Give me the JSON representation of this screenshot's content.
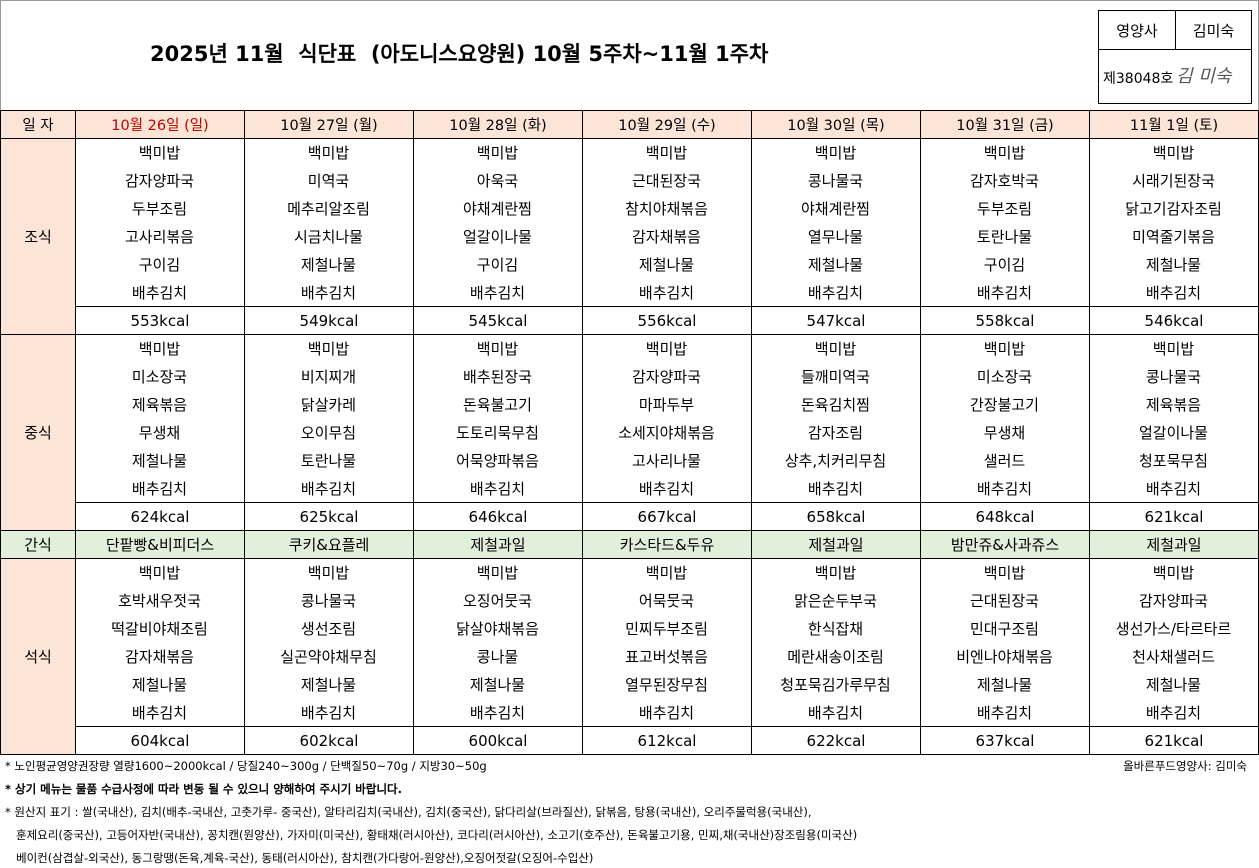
{
  "header": {
    "title": "2025년 11월  식단표  (아도니스요양원) 10월 5주차~11월 1주차"
  },
  "approval": {
    "role": "영양사",
    "name": "김미숙",
    "license": "제38048호",
    "signature": "김 미숙"
  },
  "table": {
    "header": [
      "일 자",
      "10월 26일 (일)",
      "10월 27일 (월)",
      "10월 28일 (화)",
      "10월 29일 (수)",
      "10월 30일 (목)",
      "10월 31일 (금)",
      "11월 1일 (토)"
    ],
    "sections": [
      {
        "label": "조식",
        "menus": [
          [
            "백미밥",
            "감자양파국",
            "두부조림",
            "고사리볶음",
            "구이김",
            "배추김치"
          ],
          [
            "백미밥",
            "미역국",
            "메추리알조림",
            "시금치나물",
            "제철나물",
            "배추김치"
          ],
          [
            "백미밥",
            "아욱국",
            "야채계란찜",
            "얼갈이나물",
            "구이김",
            "배추김치"
          ],
          [
            "백미밥",
            "근대된장국",
            "참치야채볶음",
            "감자채볶음",
            "제철나물",
            "배추김치"
          ],
          [
            "백미밥",
            "콩나물국",
            "야채계란찜",
            "열무나물",
            "제철나물",
            "배추김치"
          ],
          [
            "백미밥",
            "감자호박국",
            "두부조림",
            "토란나물",
            "구이김",
            "배추김치"
          ],
          [
            "백미밥",
            "시래기된장국",
            "닭고기감자조림",
            "미역줄기볶음",
            "제철나물",
            "배추김치"
          ]
        ],
        "kcal": [
          "553kcal",
          "549kcal",
          "545kcal",
          "556kcal",
          "547kcal",
          "558kcal",
          "546kcal"
        ]
      },
      {
        "label": "중식",
        "menus": [
          [
            "백미밥",
            "미소장국",
            "제육볶음",
            "무생채",
            "제철나물",
            "배추김치"
          ],
          [
            "백미밥",
            "비지찌개",
            "닭살카레",
            "오이무침",
            "토란나물",
            "배추김치"
          ],
          [
            "백미밥",
            "배추된장국",
            "돈육불고기",
            "도토리묵무침",
            "어묵양파볶음",
            "배추김치"
          ],
          [
            "백미밥",
            "감자양파국",
            "마파두부",
            "소세지야채볶음",
            "고사리나물",
            "배추김치"
          ],
          [
            "백미밥",
            "들깨미역국",
            "돈육김치찜",
            "감자조림",
            "상추,치커리무침",
            "배추김치"
          ],
          [
            "백미밥",
            "미소장국",
            "간장불고기",
            "무생채",
            "샐러드",
            "배추김치"
          ],
          [
            "백미밥",
            "콩나물국",
            "제육볶음",
            "얼갈이나물",
            "청포묵무침",
            "배추김치"
          ]
        ],
        "kcal": [
          "624kcal",
          "625kcal",
          "646kcal",
          "667kcal",
          "658kcal",
          "648kcal",
          "621kcal"
        ]
      },
      {
        "label": "간식",
        "items": [
          "단팥빵&비피더스",
          "쿠키&요플레",
          "제철과일",
          "카스타드&두유",
          "제철과일",
          "밤만쥬&사과쥬스",
          "제철과일"
        ]
      },
      {
        "label": "석식",
        "menus": [
          [
            "백미밥",
            "호박새우젓국",
            "떡갈비야채조림",
            "감자채볶음",
            "제철나물",
            "배추김치"
          ],
          [
            "백미밥",
            "콩나물국",
            "생선조림",
            "실곤약야채무침",
            "제철나물",
            "배추김치"
          ],
          [
            "백미밥",
            "오징어뭇국",
            "닭살야채볶음",
            "콩나물",
            "제철나물",
            "배추김치"
          ],
          [
            "백미밥",
            "어묵뭇국",
            "민찌두부조림",
            "표고버섯볶음",
            "열무된장무침",
            "배추김치"
          ],
          [
            "백미밥",
            "맑은순두부국",
            "한식잡채",
            "메란새송이조림",
            "청포묵김가루무침",
            "배추김치"
          ],
          [
            "백미밥",
            "근대된장국",
            "민대구조림",
            "비엔나야채볶음",
            "제철나물",
            "배추김치"
          ],
          [
            "백미밥",
            "감자양파국",
            "생선가스/타르타르",
            "천사채샐러드",
            "제철나물",
            "배추김치"
          ]
        ],
        "kcal": [
          "604kcal",
          "602kcal",
          "600kcal",
          "612kcal",
          "622kcal",
          "637kcal",
          "621kcal"
        ]
      }
    ]
  },
  "notes": {
    "nutrition": "* 노인평균영양권장량 열량1600~2000kcal / 당질240~300g / 단백질50~70g / 지방30~50g",
    "dietitian": "올바른푸드영양사: 김미숙",
    "notice": "* 상기 메뉴는 물품 수급사정에 따라 변동 될 수 있으니 양해하여 주시기 바랍니다.",
    "origin": [
      "* 원산지 표기 : 쌀(국내산), 김치(배추-국내산, 고춧가루- 중국산), 알타리김치(국내산), 김치(중국산), 닭다리살(브라질산), 닭볶음, 탕용(국내산), 오리주물럭용(국내산),",
      "훈제요리(중국산), 고등어자반(국내산), 꽁치캔(원양산), 가자미(미국산), 황태채(러시아산), 코다리(러시아산), 소고기(호주산), 돈육불고기용, 민찌,채(국내산)장조림용(미국산)",
      "베이컨(삼겹살-외국산), 동그랑땡(돈육,계육-국산), 동태(러시아산), 참치캔(가다랑어-원양산),오징어젓갈(오징어-수입산)"
    ]
  }
}
